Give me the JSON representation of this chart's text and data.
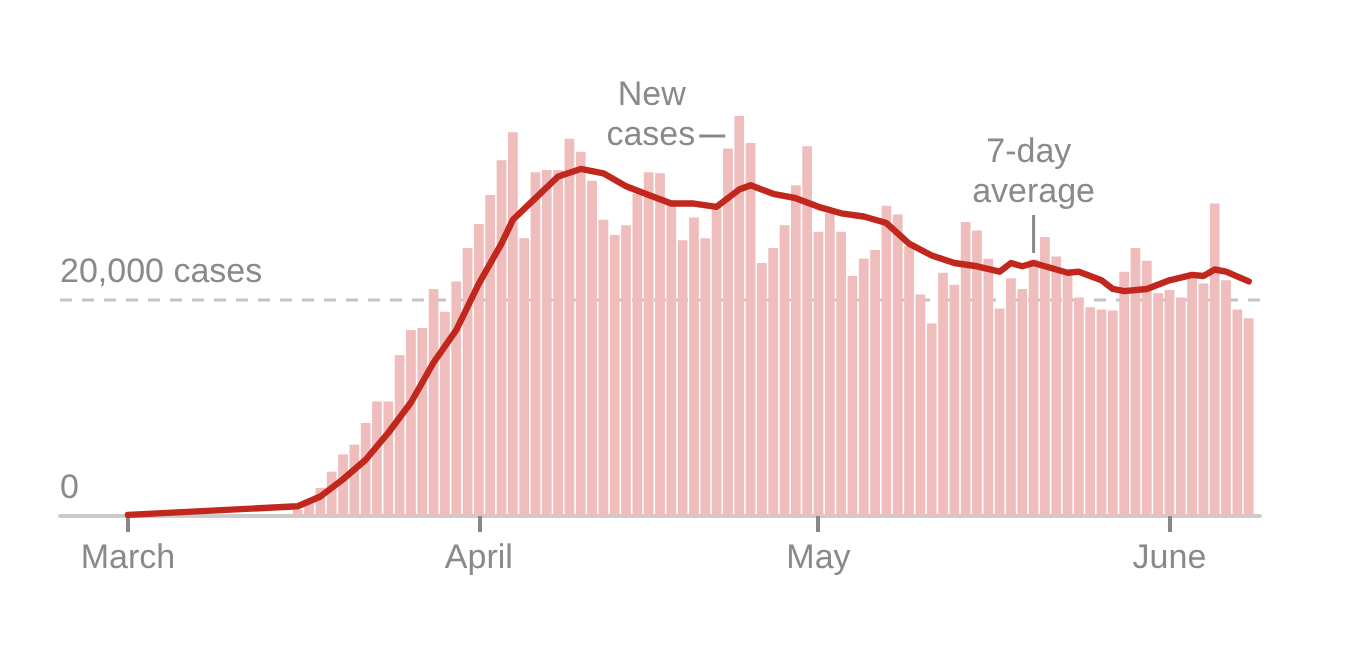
{
  "chart_data": {
    "type": "bar",
    "xlim": [
      "--02-23",
      "--06-09"
    ],
    "xticks": [
      {
        "value": "--03-01",
        "label": "March"
      },
      {
        "value": "--04-01",
        "label": "April"
      },
      {
        "value": "--05-01",
        "label": "May"
      },
      {
        "value": "--06-01",
        "label": "June"
      }
    ],
    "ylim": [
      0,
      37000
    ],
    "yticks": [
      {
        "value": 0,
        "label": "0"
      },
      {
        "value": 20000,
        "label": "20,000 cases"
      }
    ],
    "grid": "y",
    "marker": "none",
    "series": [
      {
        "name": "New cases",
        "color": "#efbdbb",
        "x": [
          "--03-16",
          "--03-17",
          "--03-18",
          "--03-19",
          "--03-20",
          "--03-21",
          "--03-22",
          "--03-23",
          "--03-24",
          "--03-25",
          "--03-26",
          "--03-27",
          "--03-28",
          "--03-29",
          "--03-30",
          "--03-31",
          "--04-01",
          "--04-02",
          "--04-03",
          "--04-04",
          "--04-05",
          "--04-06",
          "--04-07",
          "--04-08",
          "--04-09",
          "--04-10",
          "--04-11",
          "--04-12",
          "--04-13",
          "--04-14",
          "--04-15",
          "--04-16",
          "--04-17",
          "--04-18",
          "--04-19",
          "--04-20",
          "--04-21",
          "--04-22",
          "--04-23",
          "--04-24",
          "--04-25",
          "--04-26",
          "--04-27",
          "--04-28",
          "--04-29",
          "--04-30",
          "--05-01",
          "--05-02",
          "--05-03",
          "--05-04",
          "--05-05",
          "--05-06",
          "--05-07",
          "--05-08",
          "--05-09",
          "--05-10",
          "--05-11",
          "--05-12",
          "--05-13",
          "--05-14",
          "--05-15",
          "--05-16",
          "--05-17",
          "--05-18",
          "--05-19",
          "--05-20",
          "--05-21",
          "--05-22",
          "--05-23",
          "--05-24",
          "--05-25",
          "--05-26",
          "--05-27",
          "--05-28",
          "--05-29",
          "--05-30",
          "--05-31",
          "--06-01",
          "--06-02",
          "--06-03",
          "--06-04",
          "--06-05",
          "--06-06",
          "--06-07",
          "--06-08"
        ],
        "values": [
          600,
          1500,
          2600,
          4100,
          5700,
          6600,
          8600,
          10600,
          10600,
          14900,
          17200,
          17400,
          21000,
          18900,
          21700,
          24800,
          27000,
          29700,
          32900,
          35500,
          25700,
          31800,
          32000,
          32000,
          34900,
          33700,
          31000,
          27400,
          26000,
          26900,
          29800,
          31800,
          31700,
          29200,
          25500,
          27600,
          25700,
          28600,
          34000,
          37000,
          34500,
          23400,
          24800,
          26900,
          30600,
          34200,
          26300,
          28000,
          26300,
          22200,
          23800,
          24600,
          28700,
          27900,
          25000,
          20500,
          17800,
          22500,
          21400,
          27200,
          26400,
          23800,
          19200,
          22000,
          21000,
          23700,
          25800,
          24000,
          22300,
          20200,
          19300,
          19100,
          19000,
          22600,
          24800,
          23600,
          20600,
          20900,
          20200,
          22200,
          21500,
          28900,
          21800,
          19100,
          18300
        ]
      },
      {
        "name": "7-day average",
        "type": "line",
        "color": "#c1271d",
        "x": [
          "--03-01",
          "--03-16",
          "--03-18",
          "--03-20",
          "--03-22",
          "--03-24",
          "--03-26",
          "--03-28",
          "--03-30",
          "--04-01",
          "--04-03",
          "--04-04",
          "--04-06",
          "--04-08",
          "--04-10",
          "--04-12",
          "--04-14",
          "--04-16",
          "--04-18",
          "--04-20",
          "--04-22",
          "--04-24",
          "--04-25",
          "--04-27",
          "--04-29",
          "--05-01",
          "--05-03",
          "--05-05",
          "--05-07",
          "--05-09",
          "--05-11",
          "--05-13",
          "--05-15",
          "--05-17",
          "--05-18",
          "--05-19",
          "--05-20",
          "--05-22",
          "--05-23",
          "--05-24",
          "--05-26",
          "--05-27",
          "--05-28",
          "--05-30",
          "--06-01",
          "--06-03",
          "--06-04",
          "--06-05",
          "--06-06",
          "--06-08"
        ],
        "values": [
          100,
          900,
          1800,
          3400,
          5200,
          7700,
          10500,
          14200,
          17200,
          21500,
          25200,
          27400,
          29400,
          31400,
          32100,
          31700,
          30500,
          29700,
          28900,
          28900,
          28600,
          30200,
          30600,
          29800,
          29400,
          28600,
          28000,
          27700,
          27100,
          25200,
          24100,
          23400,
          23100,
          22600,
          23400,
          23100,
          23400,
          22800,
          22500,
          22600,
          21800,
          21000,
          20800,
          21000,
          21800,
          22300,
          22200,
          22800,
          22600,
          21700
        ]
      }
    ]
  }
}
